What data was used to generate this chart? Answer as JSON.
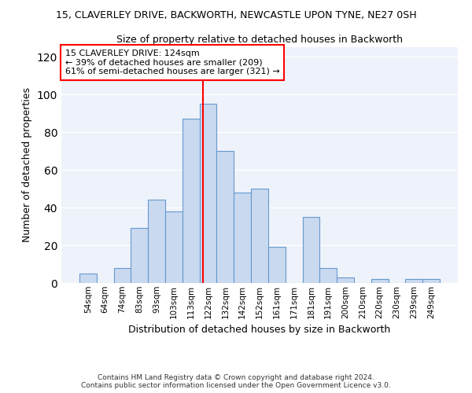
{
  "title": "15, CLAVERLEY DRIVE, BACKWORTH, NEWCASTLE UPON TYNE, NE27 0SH",
  "subtitle": "Size of property relative to detached houses in Backworth",
  "xlabel": "Distribution of detached houses by size in Backworth",
  "ylabel": "Number of detached properties",
  "bar_color": "#c9d9f0",
  "bar_edge_color": "#6699cc",
  "background_color": "#eef2fb",
  "grid_color": "#ffffff",
  "categories": [
    "54sqm",
    "64sqm",
    "74sqm",
    "83sqm",
    "93sqm",
    "103sqm",
    "113sqm",
    "122sqm",
    "132sqm",
    "142sqm",
    "152sqm",
    "161sqm",
    "171sqm",
    "181sqm",
    "191sqm",
    "200sqm",
    "210sqm",
    "220sqm",
    "230sqm",
    "239sqm",
    "249sqm"
  ],
  "values": [
    5,
    0,
    8,
    29,
    44,
    38,
    87,
    95,
    70,
    48,
    50,
    19,
    0,
    35,
    8,
    3,
    0,
    2,
    0,
    2,
    2
  ],
  "ylim": [
    0,
    125
  ],
  "yticks": [
    0,
    20,
    40,
    60,
    80,
    100,
    120
  ],
  "annotation_text_line1": "15 CLAVERLEY DRIVE: 124sqm",
  "annotation_text_line2": "← 39% of detached houses are smaller (209)",
  "annotation_text_line3": "61% of semi-detached houses are larger (321) →",
  "footer_line1": "Contains HM Land Registry data © Crown copyright and database right 2024.",
  "footer_line2": "Contains public sector information licensed under the Open Government Licence v3.0."
}
